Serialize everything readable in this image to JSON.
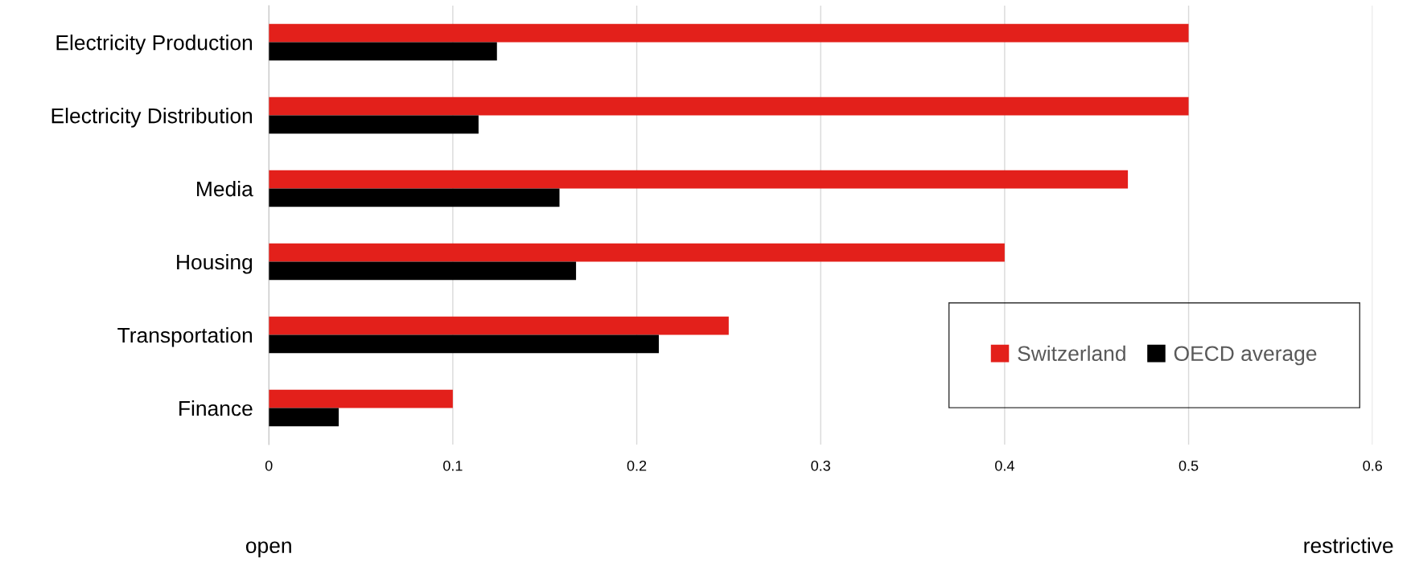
{
  "chart_data": {
    "type": "bar",
    "orientation": "horizontal",
    "categories": [
      "Electricity Production",
      "Electricity Distribution",
      "Media",
      "Housing",
      "Transportation",
      "Finance"
    ],
    "series": [
      {
        "name": "Switzerland",
        "color": "#e3201b",
        "values": [
          0.5,
          0.5,
          0.467,
          0.4,
          0.25,
          0.1
        ]
      },
      {
        "name": "OECD average",
        "color": "#000000",
        "values": [
          0.124,
          0.114,
          0.158,
          0.167,
          0.212,
          0.038
        ]
      }
    ],
    "xlim": [
      0,
      0.6
    ],
    "xticks": [
      0,
      0.1,
      0.2,
      0.3,
      0.4,
      0.5,
      0.6
    ],
    "grid": "x",
    "legend": "bottom right",
    "annotations": [
      "open",
      "restrictive"
    ]
  }
}
